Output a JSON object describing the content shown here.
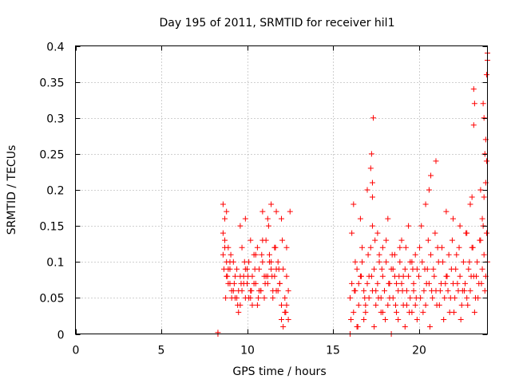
{
  "chart_data": {
    "type": "scatter",
    "title": "Day 195 of 2011, SRMTID for receiver hil1",
    "xlabel": "GPS time / hours",
    "ylabel": "SRMTID / TECUs",
    "xlim": [
      0,
      24
    ],
    "ylim": [
      0,
      0.4
    ],
    "xticks": [
      0,
      5,
      10,
      15,
      20
    ],
    "xtick_labels": [
      "0",
      "5",
      "10",
      "15",
      "20"
    ],
    "yticks": [
      0,
      0.05,
      0.1,
      0.15,
      0.2,
      0.25,
      0.3,
      0.35,
      0.4
    ],
    "ytick_labels": [
      "0",
      "0.05",
      "0.1",
      "0.15",
      "0.2",
      "0.25",
      "0.3",
      "0.35",
      "0.4"
    ],
    "grid": true,
    "marker": "plus",
    "color": "#ff0000",
    "series": [
      {
        "name": "SRMTID",
        "x": [
          8.3,
          8.3,
          8.6,
          8.7,
          8.8,
          8.9,
          9.0,
          9.1,
          9.2,
          9.3,
          9.4,
          9.5,
          9.6,
          9.7,
          9.8,
          9.9,
          10.0,
          10.1,
          10.2,
          10.3,
          10.4,
          10.5,
          10.6,
          10.7,
          10.8,
          10.9,
          11.0,
          11.1,
          11.2,
          11.3,
          11.4,
          11.5,
          11.6,
          11.7,
          11.8,
          11.9,
          12.0,
          12.1,
          12.2,
          12.3,
          12.4,
          8.6,
          8.7,
          8.8,
          8.9,
          9.0,
          9.2,
          9.4,
          9.6,
          9.8,
          10.0,
          10.2,
          10.4,
          10.6,
          10.8,
          11.0,
          11.2,
          11.4,
          11.6,
          11.8,
          12.0,
          12.2,
          12.4,
          8.7,
          8.9,
          9.1,
          9.3,
          9.5,
          9.7,
          9.9,
          10.1,
          10.3,
          10.5,
          10.7,
          10.9,
          11.1,
          11.3,
          11.5,
          11.7,
          11.9,
          12.1,
          12.3,
          8.65,
          8.75,
          8.85,
          9.05,
          9.25,
          9.45,
          9.65,
          9.85,
          10.05,
          10.25,
          10.45,
          10.65,
          10.85,
          11.05,
          11.25,
          11.45,
          11.65,
          11.85,
          12.05,
          12.25,
          8.6,
          8.8,
          9.0,
          9.6,
          9.9,
          10.2,
          10.9,
          11.2,
          11.4,
          11.7,
          12.0,
          12.3,
          12.5,
          16.0,
          16.1,
          16.2,
          16.3,
          16.4,
          16.5,
          16.6,
          16.7,
          16.8,
          16.9,
          17.0,
          17.1,
          17.2,
          17.3,
          17.4,
          17.5,
          17.6,
          17.7,
          17.8,
          17.9,
          18.0,
          18.1,
          18.2,
          18.3,
          18.4,
          18.5,
          18.6,
          18.7,
          18.8,
          18.9,
          19.0,
          19.1,
          19.2,
          19.3,
          19.4,
          19.5,
          19.6,
          19.7,
          19.8,
          19.9,
          16.05,
          16.25,
          16.45,
          16.65,
          16.85,
          17.05,
          17.25,
          17.45,
          17.65,
          17.85,
          18.05,
          18.25,
          18.45,
          18.65,
          18.85,
          19.05,
          19.25,
          19.45,
          19.65,
          19.85,
          16.1,
          16.3,
          16.5,
          16.7,
          16.9,
          17.1,
          17.3,
          17.5,
          17.7,
          17.9,
          18.1,
          18.3,
          18.5,
          18.7,
          18.9,
          19.1,
          19.3,
          19.5,
          19.7,
          19.9,
          16.2,
          16.6,
          17.0,
          17.2,
          17.25,
          17.3,
          17.35,
          17.3,
          17.6,
          17.9,
          18.2,
          18.6,
          19.0,
          19.4,
          19.8,
          16.0,
          16.4,
          16.8,
          17.4,
          17.8,
          18.4,
          18.8,
          19.2,
          19.6,
          20.0,
          20.1,
          20.2,
          20.3,
          20.4,
          20.5,
          20.6,
          20.7,
          20.8,
          20.9,
          21.0,
          21.1,
          21.2,
          21.3,
          21.4,
          21.5,
          21.6,
          21.7,
          21.8,
          21.9,
          22.0,
          22.1,
          22.2,
          22.3,
          22.4,
          22.5,
          22.6,
          22.7,
          22.8,
          22.9,
          23.0,
          23.1,
          23.2,
          23.3,
          23.4,
          23.5,
          23.6,
          23.7,
          23.8,
          23.9,
          24.0,
          20.05,
          20.25,
          20.45,
          20.65,
          20.85,
          21.05,
          21.25,
          21.45,
          21.65,
          21.85,
          22.05,
          22.25,
          22.45,
          22.65,
          22.85,
          23.05,
          23.25,
          23.45,
          23.65,
          23.85,
          20.15,
          20.35,
          20.55,
          20.75,
          20.95,
          21.15,
          21.35,
          21.55,
          21.75,
          21.95,
          22.15,
          22.35,
          22.55,
          22.75,
          22.95,
          23.15,
          23.35,
          23.55,
          23.75,
          23.95,
          20.4,
          20.6,
          20.7,
          21.0,
          21.6,
          22.0,
          22.4,
          22.8,
          23.0,
          23.1,
          23.2,
          23.2,
          23.25,
          23.6,
          23.7,
          23.75,
          23.8,
          23.85,
          23.9,
          23.95,
          23.95,
          24.0,
          24.0,
          23.9,
          23.8
        ],
        "y": [
          0.0,
          0.002,
          0.11,
          0.13,
          0.08,
          0.09,
          0.07,
          0.06,
          0.1,
          0.05,
          0.09,
          0.06,
          0.08,
          0.12,
          0.07,
          0.05,
          0.09,
          0.1,
          0.06,
          0.08,
          0.07,
          0.11,
          0.12,
          0.09,
          0.06,
          0.1,
          0.08,
          0.13,
          0.07,
          0.11,
          0.09,
          0.05,
          0.08,
          0.06,
          0.1,
          0.07,
          0.04,
          0.09,
          0.03,
          0.08,
          0.06,
          0.14,
          0.12,
          0.1,
          0.07,
          0.09,
          0.06,
          0.05,
          0.04,
          0.08,
          0.07,
          0.05,
          0.11,
          0.04,
          0.06,
          0.05,
          0.08,
          0.1,
          0.12,
          0.06,
          0.02,
          0.05,
          0.02,
          0.16,
          0.12,
          0.05,
          0.08,
          0.03,
          0.06,
          0.09,
          0.05,
          0.04,
          0.07,
          0.06,
          0.13,
          0.08,
          0.1,
          0.06,
          0.09,
          0.07,
          0.01,
          0.04,
          0.09,
          0.05,
          0.08,
          0.11,
          0.07,
          0.04,
          0.07,
          0.1,
          0.08,
          0.06,
          0.09,
          0.05,
          0.11,
          0.07,
          0.15,
          0.08,
          0.12,
          0.09,
          0.13,
          0.03,
          0.18,
          0.17,
          0.1,
          0.15,
          0.16,
          0.13,
          0.17,
          0.16,
          0.18,
          0.17,
          0.16,
          0.12,
          0.17,
          0.05,
          0.07,
          0.03,
          0.06,
          0.09,
          0.04,
          0.08,
          0.1,
          0.06,
          0.03,
          0.07,
          0.05,
          0.12,
          0.06,
          0.09,
          0.04,
          0.07,
          0.11,
          0.05,
          0.08,
          0.06,
          0.1,
          0.04,
          0.07,
          0.09,
          0.05,
          0.08,
          0.03,
          0.06,
          0.1,
          0.07,
          0.04,
          0.09,
          0.06,
          0.08,
          0.05,
          0.1,
          0.07,
          0.04,
          0.09,
          0.02,
          0.06,
          0.01,
          0.08,
          0.05,
          0.11,
          0.08,
          0.13,
          0.05,
          0.09,
          0.02,
          0.07,
          0.11,
          0.04,
          0.08,
          0.06,
          0.12,
          0.03,
          0.09,
          0.05,
          0.14,
          0.1,
          0.07,
          0.12,
          0.04,
          0.08,
          0.15,
          0.06,
          0.1,
          0.03,
          0.13,
          0.05,
          0.09,
          0.07,
          0.12,
          0.08,
          0.04,
          0.1,
          0.06,
          0.02,
          0.18,
          0.16,
          0.2,
          0.23,
          0.25,
          0.21,
          0.3,
          0.19,
          0.14,
          0.12,
          0.16,
          0.11,
          0.13,
          0.15,
          0.11,
          0.0,
          0.01,
          0.02,
          0.01,
          0.03,
          0.0,
          0.02,
          0.01,
          0.03,
          0.08,
          0.05,
          0.1,
          0.06,
          0.04,
          0.09,
          0.07,
          0.11,
          0.05,
          0.08,
          0.06,
          0.12,
          0.04,
          0.07,
          0.1,
          0.05,
          0.08,
          0.06,
          0.03,
          0.09,
          0.07,
          0.05,
          0.11,
          0.06,
          0.08,
          0.04,
          0.1,
          0.07,
          0.05,
          0.09,
          0.06,
          0.12,
          0.08,
          0.05,
          0.1,
          0.07,
          0.13,
          0.09,
          0.11,
          0.08,
          0.1,
          0.12,
          0.03,
          0.07,
          0.01,
          0.09,
          0.04,
          0.06,
          0.02,
          0.08,
          0.05,
          0.03,
          0.07,
          0.02,
          0.06,
          0.04,
          0.08,
          0.03,
          0.05,
          0.07,
          0.06,
          0.15,
          0.09,
          0.13,
          0.06,
          0.14,
          0.1,
          0.12,
          0.07,
          0.11,
          0.13,
          0.09,
          0.12,
          0.06,
          0.14,
          0.1,
          0.12,
          0.08,
          0.13,
          0.15,
          0.14,
          0.18,
          0.2,
          0.22,
          0.24,
          0.17,
          0.16,
          0.15,
          0.14,
          0.18,
          0.19,
          0.34,
          0.29,
          0.32,
          0.2,
          0.16,
          0.32,
          0.3,
          0.25,
          0.27,
          0.24,
          0.36,
          0.38,
          0.39,
          0.21,
          0.19
        ]
      }
    ]
  }
}
